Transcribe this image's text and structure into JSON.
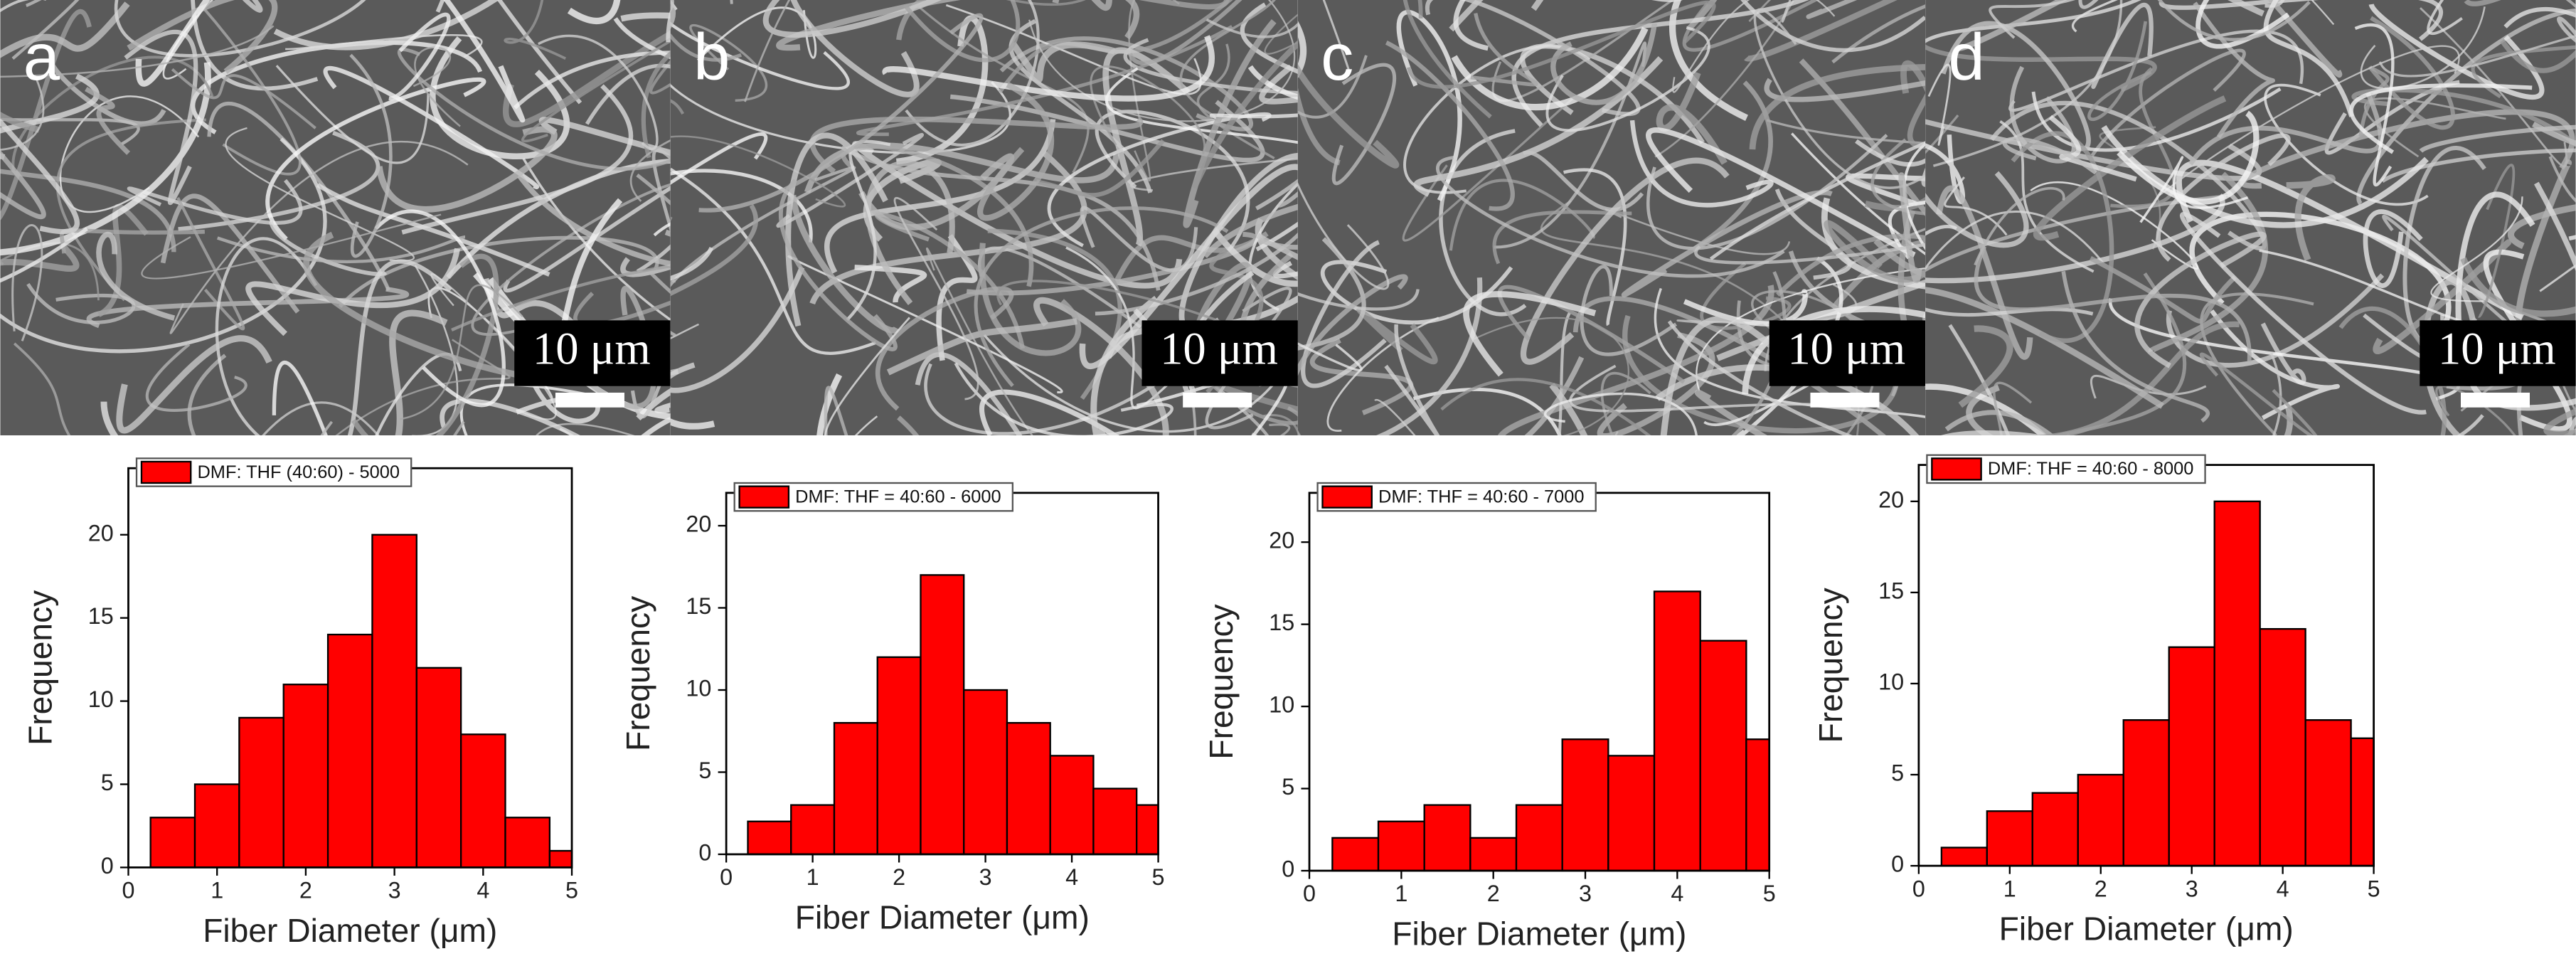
{
  "images": [
    {
      "label": "a",
      "scale": "10 μm"
    },
    {
      "label": "b",
      "scale": "10 μm"
    },
    {
      "label": "c",
      "scale": "10 μm"
    },
    {
      "label": "d",
      "scale": "10 μm"
    }
  ],
  "chart_data": [
    {
      "type": "histogram",
      "xlabel": "Fiber Diameter (μm)",
      "ylabel": "Frequency",
      "bins": [
        0.25,
        0.75,
        1.25,
        1.75,
        2.25,
        2.75,
        3.25,
        3.75,
        4.25,
        4.75,
        5
      ],
      "series": [
        {
          "name": "DMF: THF (40:60) - 5000",
          "color": "#ff0000",
          "values": [
            3,
            5,
            9,
            11,
            14,
            20,
            12,
            8,
            3,
            1
          ]
        }
      ],
      "xlim": [
        0,
        5
      ],
      "xticks": [
        0,
        1,
        2,
        3,
        4,
        5
      ],
      "ylim": [
        0,
        24
      ],
      "yticks": [
        0,
        5,
        10,
        15,
        20
      ],
      "legend": "top-left"
    },
    {
      "type": "histogram",
      "xlabel": "Fiber Diameter (μm)",
      "ylabel": "Frequency",
      "bins": [
        0.25,
        0.75,
        1.25,
        1.75,
        2.25,
        2.75,
        3.25,
        3.75,
        4.25,
        4.75,
        5
      ],
      "series": [
        {
          "name": "DMF: THF = 40:60 - 6000",
          "color": "#ff0000",
          "values": [
            2,
            3,
            8,
            12,
            17,
            10,
            8,
            6,
            4,
            3
          ]
        }
      ],
      "xlim": [
        0,
        5
      ],
      "xticks": [
        0,
        1,
        2,
        3,
        4,
        5
      ],
      "ylim": [
        0,
        22
      ],
      "yticks": [
        0,
        5,
        10,
        15,
        20
      ],
      "legend": "top-left"
    },
    {
      "type": "histogram",
      "xlabel": "Fiber Diameter (μm)",
      "ylabel": "Frequency",
      "bins": [
        0.25,
        0.75,
        1.25,
        1.75,
        2.25,
        2.75,
        3.25,
        3.75,
        4.25,
        4.75,
        5
      ],
      "series": [
        {
          "name": "DMF: THF = 40:60 - 7000",
          "color": "#ff0000",
          "values": [
            2,
            3,
            4,
            2,
            4,
            8,
            7,
            17,
            14,
            8
          ]
        }
      ],
      "xlim": [
        0,
        5
      ],
      "xticks": [
        0,
        1,
        2,
        3,
        4,
        5
      ],
      "ylim": [
        0,
        23
      ],
      "yticks": [
        0,
        5,
        10,
        15,
        20
      ],
      "legend": "top-left"
    },
    {
      "type": "histogram",
      "xlabel": "Fiber Diameter (μm)",
      "ylabel": "Frequency",
      "bins": [
        0.25,
        0.75,
        1.25,
        1.75,
        2.25,
        2.75,
        3.25,
        3.75,
        4.25,
        4.75,
        5
      ],
      "series": [
        {
          "name": "DMF: THF = 40:60 - 8000",
          "color": "#ff0000",
          "values": [
            1,
            3,
            4,
            5,
            8,
            12,
            20,
            13,
            8,
            7
          ]
        }
      ],
      "xlim": [
        0,
        5
      ],
      "xticks": [
        0,
        1,
        2,
        3,
        4,
        5
      ],
      "ylim": [
        0,
        22
      ],
      "yticks": [
        0,
        5,
        10,
        15,
        20
      ],
      "legend": "top-left"
    }
  ]
}
